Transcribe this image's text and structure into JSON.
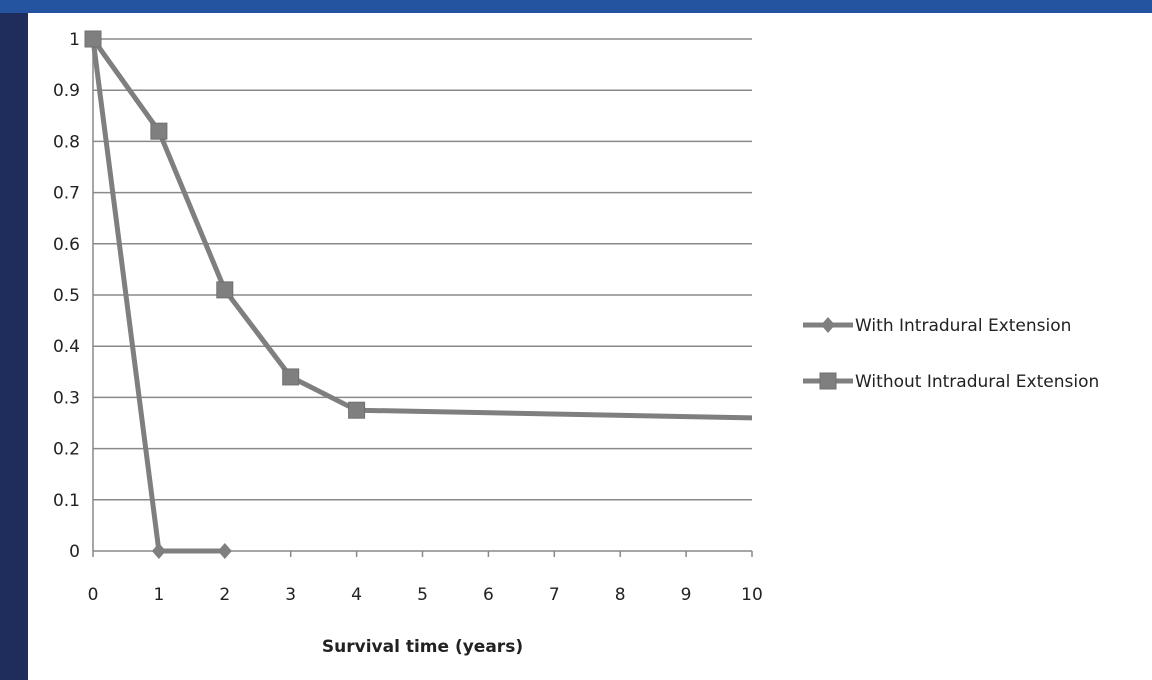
{
  "colors": {
    "frame_left": "#1f2d5c",
    "frame_top": "#2453a0",
    "gridline": "#8a8a8a",
    "axis": "#888888",
    "series": "#7f7f7f"
  },
  "chart_data": {
    "type": "line",
    "title": "",
    "xlabel": "Survival  time (years)",
    "ylabel": "",
    "xlim": [
      0,
      10
    ],
    "ylim": [
      0,
      1
    ],
    "x_ticks": [
      "0",
      "1",
      "2",
      "3",
      "4",
      "5",
      "6",
      "7",
      "8",
      "9",
      "10"
    ],
    "y_ticks": [
      "0",
      "0.1",
      "0.2",
      "0.3",
      "0.4",
      "0.5",
      "0.6",
      "0.7",
      "0.8",
      "0.9",
      "1"
    ],
    "grid": true,
    "legend": "right",
    "series": [
      {
        "name": "With Intradural Extension",
        "marker": "diamond",
        "points": [
          [
            0,
            1
          ],
          [
            1,
            0
          ],
          [
            2,
            0
          ]
        ]
      },
      {
        "name": "Without Intradural Extension",
        "marker": "square",
        "points": [
          [
            0,
            1
          ],
          [
            1,
            0.82
          ],
          [
            2,
            0.51
          ],
          [
            3,
            0.34
          ],
          [
            4,
            0.275
          ],
          [
            10,
            0.26
          ]
        ]
      }
    ]
  }
}
